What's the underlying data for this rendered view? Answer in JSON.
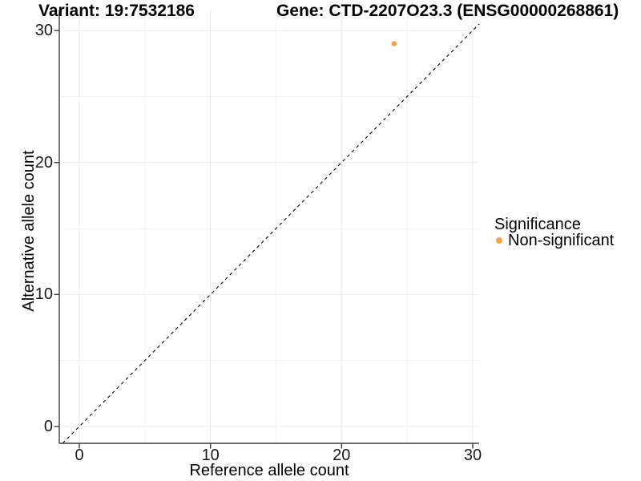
{
  "chart_data": {
    "type": "scatter",
    "title_variant": "Variant: 19:7532186",
    "title_gene": "Gene: CTD-2207O23.3 (ENSG00000268861)",
    "xlabel": "Reference allele count",
    "ylabel": "Alternative allele count",
    "x_ticks": [
      "0",
      "10",
      "20",
      "30"
    ],
    "y_ticks": [
      "0",
      "10",
      "20",
      "30"
    ],
    "xlim": [
      -1.5,
      30.5
    ],
    "ylim": [
      -1.3,
      31.5
    ],
    "grid": "major and minor gridlines, light gray on white panel",
    "identity_line": {
      "equation": "y = x",
      "style": "dashed",
      "color": "#000000"
    },
    "series": [
      {
        "name": "Non-significant",
        "color": "#F9A33A",
        "points": [
          {
            "x": 24,
            "y": 29
          }
        ]
      }
    ],
    "legend": {
      "title": "Significance",
      "position": "right",
      "items": [
        {
          "label": "Non-significant",
          "color": "#F9A33A",
          "marker": "circle"
        }
      ]
    },
    "colors": {
      "accent_orange": "#F9A33A",
      "axis_line": "#3c3c3c",
      "grid_major": "#e8e8e8",
      "grid_minor": "#f1f1f1",
      "text": "#000000"
    }
  }
}
